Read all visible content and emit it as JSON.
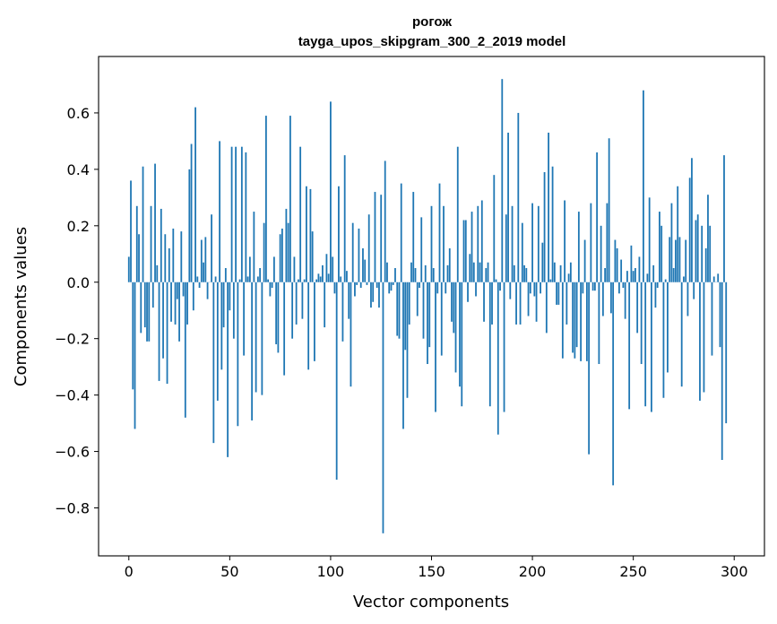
{
  "chart_data": {
    "type": "bar",
    "title_line1": "рогож",
    "title_line2": "tayga_upos_skipgram_300_2_2019 model",
    "xlabel": "Vector components",
    "ylabel": "Components values",
    "xlim": [
      -15,
      315
    ],
    "ylim": [
      -0.97,
      0.8
    ],
    "xticks": [
      0,
      50,
      100,
      150,
      200,
      250,
      300
    ],
    "xtick_labels": [
      "0",
      "50",
      "100",
      "150",
      "200",
      "250",
      "300"
    ],
    "yticks": [
      -0.8,
      -0.6,
      -0.4,
      -0.2,
      0.0,
      0.2,
      0.4,
      0.6
    ],
    "ytick_labels": [
      "−0.8",
      "−0.6",
      "−0.4",
      "−0.2",
      "0.0",
      "0.2",
      "0.4",
      "0.6"
    ],
    "bar_color": "#1f77b4",
    "grid": false,
    "values": [
      0.09,
      0.36,
      -0.38,
      -0.52,
      0.27,
      0.17,
      -0.18,
      0.41,
      -0.16,
      -0.21,
      -0.21,
      0.27,
      -0.09,
      0.42,
      0.06,
      -0.35,
      0.26,
      -0.27,
      0.17,
      -0.36,
      0.12,
      -0.14,
      0.19,
      -0.15,
      -0.06,
      -0.21,
      0.18,
      -0.05,
      -0.48,
      -0.15,
      0.4,
      0.49,
      -0.1,
      0.62,
      0.02,
      -0.02,
      0.15,
      0.07,
      0.16,
      -0.06,
      0.0,
      0.24,
      -0.57,
      0.02,
      -0.42,
      0.5,
      -0.31,
      -0.16,
      0.05,
      -0.62,
      -0.1,
      0.48,
      -0.2,
      0.48,
      -0.51,
      0.01,
      0.48,
      -0.26,
      0.46,
      0.02,
      0.09,
      -0.49,
      0.25,
      -0.39,
      0.02,
      0.05,
      -0.4,
      0.21,
      0.59,
      0.01,
      -0.05,
      -0.02,
      0.09,
      -0.22,
      -0.25,
      0.17,
      0.19,
      -0.33,
      0.26,
      0.21,
      0.59,
      -0.2,
      0.09,
      -0.15,
      0.01,
      0.48,
      -0.13,
      0.01,
      0.34,
      -0.31,
      0.33,
      0.18,
      -0.28,
      0.01,
      0.03,
      0.02,
      0.06,
      -0.16,
      0.1,
      0.03,
      0.64,
      0.09,
      -0.04,
      -0.7,
      0.34,
      0.02,
      -0.21,
      0.45,
      0.04,
      -0.13,
      -0.37,
      0.21,
      -0.05,
      -0.01,
      0.19,
      -0.02,
      0.12,
      0.08,
      -0.01,
      0.24,
      -0.09,
      -0.07,
      0.32,
      -0.02,
      -0.09,
      0.31,
      -0.89,
      0.43,
      0.07,
      -0.04,
      -0.03,
      -0.01,
      0.05,
      -0.19,
      -0.2,
      0.35,
      -0.52,
      -0.24,
      -0.41,
      -0.15,
      0.07,
      0.32,
      0.05,
      -0.12,
      -0.02,
      0.23,
      -0.2,
      0.06,
      -0.29,
      -0.23,
      0.27,
      0.05,
      -0.46,
      -0.04,
      0.35,
      -0.26,
      0.27,
      -0.04,
      0.06,
      0.12,
      -0.14,
      -0.18,
      -0.32,
      0.48,
      -0.37,
      -0.44,
      0.22,
      0.22,
      -0.07,
      0.1,
      0.25,
      0.07,
      -0.05,
      0.27,
      0.07,
      0.29,
      -0.14,
      0.05,
      0.07,
      -0.44,
      -0.15,
      0.38,
      0.01,
      -0.54,
      -0.03,
      0.72,
      -0.46,
      0.24,
      0.53,
      -0.06,
      0.27,
      0.06,
      -0.15,
      0.6,
      -0.15,
      0.21,
      0.06,
      0.05,
      -0.12,
      -0.04,
      0.28,
      -0.05,
      -0.14,
      0.27,
      -0.04,
      0.14,
      0.39,
      -0.18,
      0.53,
      0.01,
      0.41,
      0.07,
      -0.08,
      -0.08,
      0.06,
      -0.27,
      0.29,
      -0.15,
      0.03,
      0.07,
      -0.25,
      -0.27,
      -0.23,
      0.25,
      -0.28,
      -0.04,
      0.15,
      -0.28,
      -0.61,
      0.28,
      -0.03,
      -0.03,
      0.46,
      -0.29,
      0.2,
      -0.12,
      0.05,
      0.28,
      0.51,
      -0.11,
      -0.72,
      0.15,
      0.12,
      -0.04,
      0.08,
      -0.02,
      -0.13,
      0.04,
      -0.45,
      0.13,
      0.04,
      0.05,
      -0.18,
      0.09,
      -0.29,
      0.68,
      -0.44,
      0.03,
      0.3,
      -0.46,
      0.06,
      -0.09,
      -0.02,
      0.25,
      0.2,
      -0.41,
      0.01,
      -0.32,
      0.16,
      0.28,
      0.05,
      0.15,
      0.34,
      0.16,
      -0.37,
      0.02,
      0.15,
      -0.12,
      0.37,
      0.44,
      -0.06,
      0.22,
      0.24,
      -0.42,
      0.2,
      -0.39,
      0.12,
      0.31,
      0.2,
      -0.26,
      0.02,
      0.0,
      0.03,
      -0.23,
      -0.63,
      0.45,
      -0.5
    ]
  }
}
